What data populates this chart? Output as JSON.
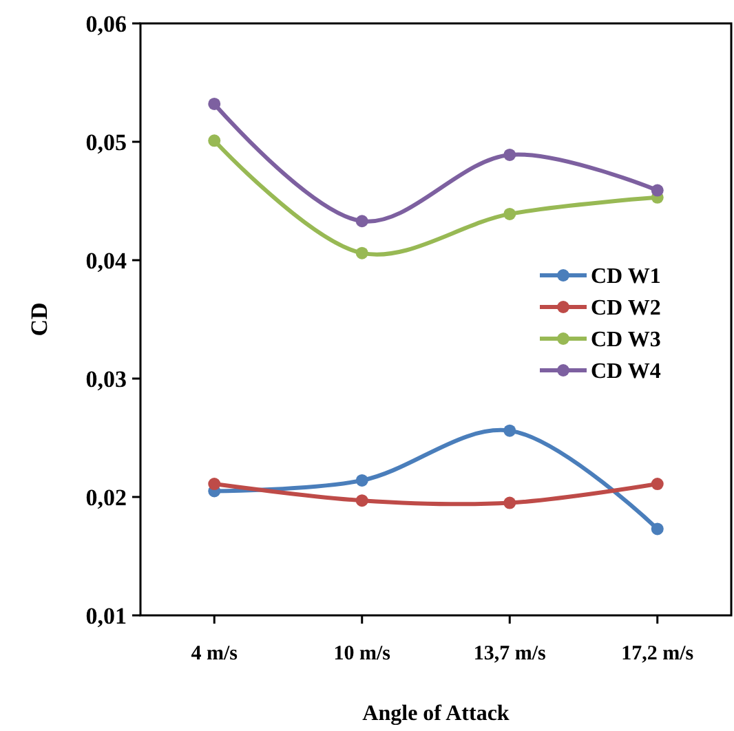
{
  "chart_data": {
    "type": "line",
    "xlabel": "Angle of Attack",
    "ylabel": "CD",
    "categories": [
      "4 m/s",
      "10 m/s",
      "13,7 m/s",
      "17,2 m/s"
    ],
    "ylim": [
      0.01,
      0.06
    ],
    "yticks": [
      {
        "value": 0.01,
        "label": "0,01"
      },
      {
        "value": 0.02,
        "label": "0,02"
      },
      {
        "value": 0.03,
        "label": "0,03"
      },
      {
        "value": 0.04,
        "label": "0,04"
      },
      {
        "value": 0.05,
        "label": "0,05"
      },
      {
        "value": 0.06,
        "label": "0,06"
      }
    ],
    "grid": false,
    "legend": "right",
    "marker": "circle",
    "line_style": "solid",
    "series": [
      {
        "name": "CD W1",
        "color": "#4a7ebb",
        "values": [
          0.0205,
          0.0214,
          0.0256,
          0.0173
        ]
      },
      {
        "name": "CD W2",
        "color": "#be4b48",
        "values": [
          0.0211,
          0.0197,
          0.0195,
          0.0211
        ]
      },
      {
        "name": "CD W3",
        "color": "#98b954",
        "values": [
          0.0501,
          0.0406,
          0.0439,
          0.0453
        ]
      },
      {
        "name": "CD W4",
        "color": "#7d60a0",
        "values": [
          0.0532,
          0.0433,
          0.0489,
          0.0459
        ]
      }
    ]
  }
}
